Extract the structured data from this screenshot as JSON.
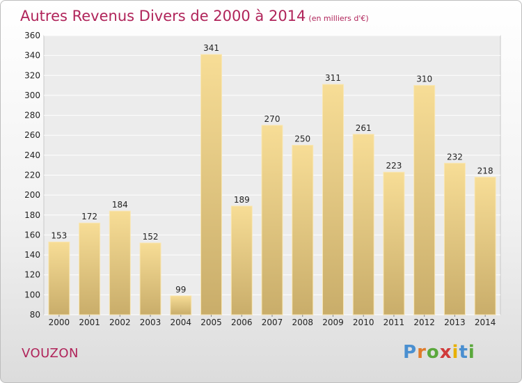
{
  "page": {
    "title": "Autres Revenus Divers de 2000 à 2014",
    "title_unit": "(en milliers d'€)",
    "commune": "VOUZON",
    "brand": {
      "letters": [
        "P",
        "r",
        "o",
        "x",
        "i",
        "t",
        "i"
      ],
      "colors": [
        "#4a8fd0",
        "#e07b2a",
        "#5aa83c",
        "#d03a3a",
        "#e8b000",
        "#4a8fd0",
        "#5aa83c"
      ]
    }
  },
  "chart_data": {
    "type": "bar",
    "categories": [
      "2000",
      "2001",
      "2002",
      "2003",
      "2004",
      "2005",
      "2006",
      "2007",
      "2008",
      "2009",
      "2010",
      "2011",
      "2012",
      "2013",
      "2014"
    ],
    "values": [
      153,
      172,
      184,
      152,
      99,
      341,
      189,
      270,
      250,
      311,
      261,
      223,
      310,
      232,
      218
    ],
    "value_labels": [
      "153",
      "172",
      "184",
      "152",
      "99",
      "341",
      "189",
      "270",
      "250",
      "311",
      "261",
      "223",
      "310",
      "232",
      "218"
    ],
    "yticks": [
      80,
      100,
      120,
      140,
      160,
      180,
      200,
      220,
      240,
      260,
      280,
      300,
      320,
      340,
      360
    ],
    "ylim": [
      80,
      360
    ],
    "grid": true,
    "bar_color_light": "#f7dd96",
    "bar_color_dark": "#c9ad6a"
  }
}
